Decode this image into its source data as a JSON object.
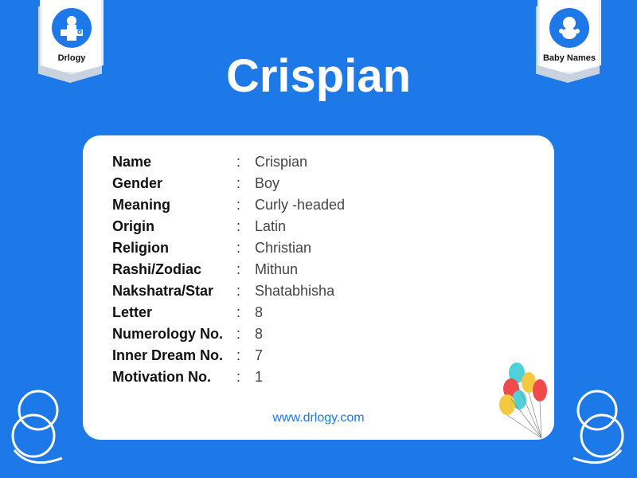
{
  "logos": {
    "left": "Drlogy",
    "right": "Baby Names"
  },
  "title": "Crispian",
  "details": [
    {
      "label": "Name",
      "value": "Crispian"
    },
    {
      "label": "Gender",
      "value": "Boy"
    },
    {
      "label": "Meaning",
      "value": "Curly -headed"
    },
    {
      "label": "Origin",
      "value": "Latin"
    },
    {
      "label": "Religion",
      "value": "Christian"
    },
    {
      "label": "Rashi/Zodiac",
      "value": "Mithun"
    },
    {
      "label": "Nakshatra/Star",
      "value": "Shatabhisha"
    },
    {
      "label": "Letter",
      "value": "8"
    },
    {
      "label": "Numerology No.",
      "value": "8"
    },
    {
      "label": "Inner Dream No.",
      "value": "7"
    },
    {
      "label": "Motivation No.",
      "value": "1"
    }
  ],
  "separator": ":",
  "website": "www.drlogy.com",
  "colors": {
    "background": "#1d78e8",
    "card": "#ffffff"
  }
}
